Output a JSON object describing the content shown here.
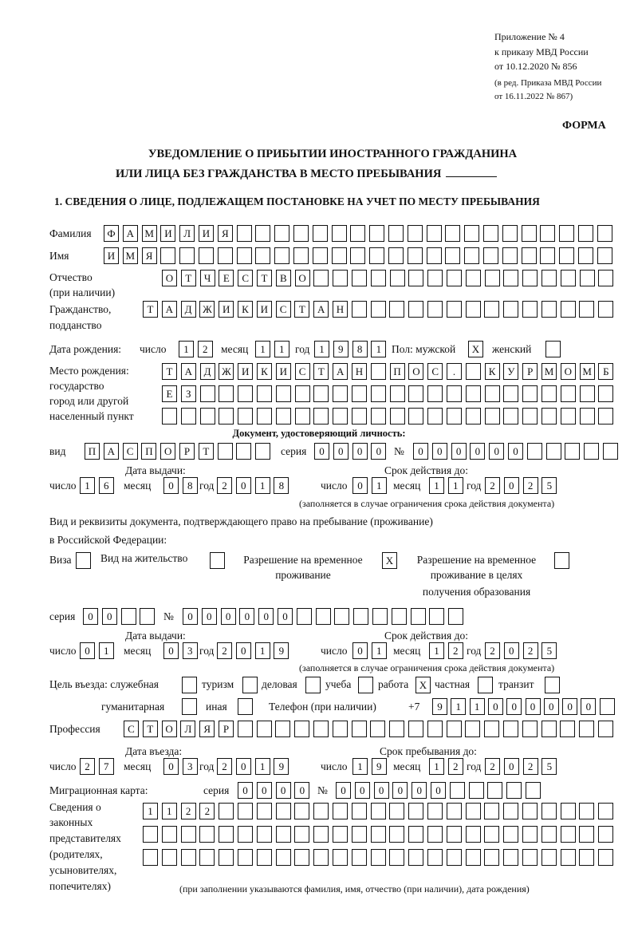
{
  "header": {
    "appendix": "Приложение № 4",
    "order_ref": "к приказу МВД России",
    "order_date": "от 10.12.2020 № 856",
    "revision_1": "(в ред. Приказа МВД России",
    "revision_2": "от 16.11.2022 № 867)",
    "form_label": "ФОРМА",
    "title_1": "УВЕДОМЛЕНИЕ О ПРИБЫТИИ ИНОСТРАННОГО ГРАЖДАНИНА",
    "title_2": "ИЛИ ЛИЦА БЕЗ ГРАЖДАНСТВА В МЕСТО ПРЕБЫВАНИЯ",
    "section_1": "1. СВЕДЕНИЯ О ЛИЦЕ, ПОДЛЕЖАЩЕМ ПОСТАНОВКЕ НА УЧЕТ ПО МЕСТУ ПРЕБЫВАНИЯ"
  },
  "labels": {
    "surname": "Фамилия",
    "name": "Имя",
    "patronymic_1": "Отчество",
    "patronymic_2": "(при наличии)",
    "citizenship_1": "Гражданство,",
    "citizenship_2": "подданство",
    "birth_date": "Дата рождения:",
    "day": "число",
    "month": "месяц",
    "year": "год",
    "sex_male": "Пол: мужской",
    "sex_female": "женский",
    "birth_place_1": "Место рождения:",
    "birth_place_2": "государство",
    "birth_place_3": "город или другой",
    "birth_place_4": "населенный пункт",
    "id_doc": "Документ, удостоверяющий личность:",
    "kind": "вид",
    "series": "серия",
    "number": "№",
    "issue_date": "Дата выдачи:",
    "valid_until": "Срок действия до:",
    "validity_note": "(заполняется в случае ограничения срока действия документа)",
    "stay_doc_1": "Вид и реквизиты документа, подтверждающего право на пребывание (проживание)",
    "stay_doc_2": "в Российской Федерации:",
    "visa": "Виза",
    "residence_permit": "Вид на жительство",
    "temp_permit_1": "Разрешение на временное",
    "temp_permit_2": "проживание",
    "temp_edu_1": "Разрешение на временное",
    "temp_edu_2": "проживание в целях",
    "temp_edu_3": "получения образования",
    "purpose": "Цель въезда: служебная",
    "tourism": "туризм",
    "business": "деловая",
    "study": "учеба",
    "work": "работа",
    "private": "частная",
    "transit": "транзит",
    "humanitarian": "гуманитарная",
    "other": "иная",
    "phone": "Телефон (при наличии)",
    "phone_prefix": "+7",
    "profession": "Профессия",
    "entry_date": "Дата въезда:",
    "stay_until": "Срок пребывания до:",
    "migration_card": "Миграционная карта:",
    "reps_1": "Сведения о",
    "reps_2": "законных",
    "reps_3": "представителях",
    "reps_4": "(родителях,",
    "reps_5": "усыновителях,",
    "reps_6": "попечителях)",
    "reps_note": "(при заполнении указываются фамилия, имя, отчество (при наличии), дата рождения)"
  },
  "fields": {
    "surname": "ФАМИЛИЯ",
    "name": "ИМЯ",
    "patronymic": "ОТЧЕСТВО",
    "citizenship": "ТАДЖИКИСТАН",
    "birth_day": "12",
    "birth_month": "11",
    "birth_year": "1981",
    "sex_male": "X",
    "sex_female": "",
    "birth_place_1": "ТАДЖИКИСТАН ПОС. КУРМОМБ",
    "birth_place_2": "ЕЗ",
    "birth_place_3": "",
    "id_kind": "ПАСПОРТ",
    "id_series": "0000",
    "id_number": "000000",
    "id_issue_day": "16",
    "id_issue_month": "08",
    "id_issue_year": "2018",
    "id_valid_day": "01",
    "id_valid_month": "11",
    "id_valid_year": "2025",
    "visa": "",
    "residence_permit": "",
    "temp_permit": "X",
    "temp_edu": "",
    "stay_series": "00",
    "stay_number": "000000",
    "stay_issue_day": "01",
    "stay_issue_month": "03",
    "stay_issue_year": "2019",
    "stay_valid_day": "01",
    "stay_valid_month": "12",
    "stay_valid_year": "2025",
    "purpose_official": "",
    "purpose_tourism": "",
    "purpose_business": "",
    "purpose_study": "",
    "purpose_work": "X",
    "purpose_private": "",
    "purpose_transit": "",
    "purpose_humanitarian": "",
    "purpose_other": "",
    "phone": "911000000",
    "profession": "СТОЛЯР",
    "entry_day": "27",
    "entry_month": "03",
    "entry_year": "2019",
    "stay_until_day": "19",
    "stay_until_month": "12",
    "stay_until_year": "2025",
    "mc_series": "0000",
    "mc_number": "000000",
    "reps_1": "1122",
    "reps_2": "",
    "reps_3": ""
  }
}
